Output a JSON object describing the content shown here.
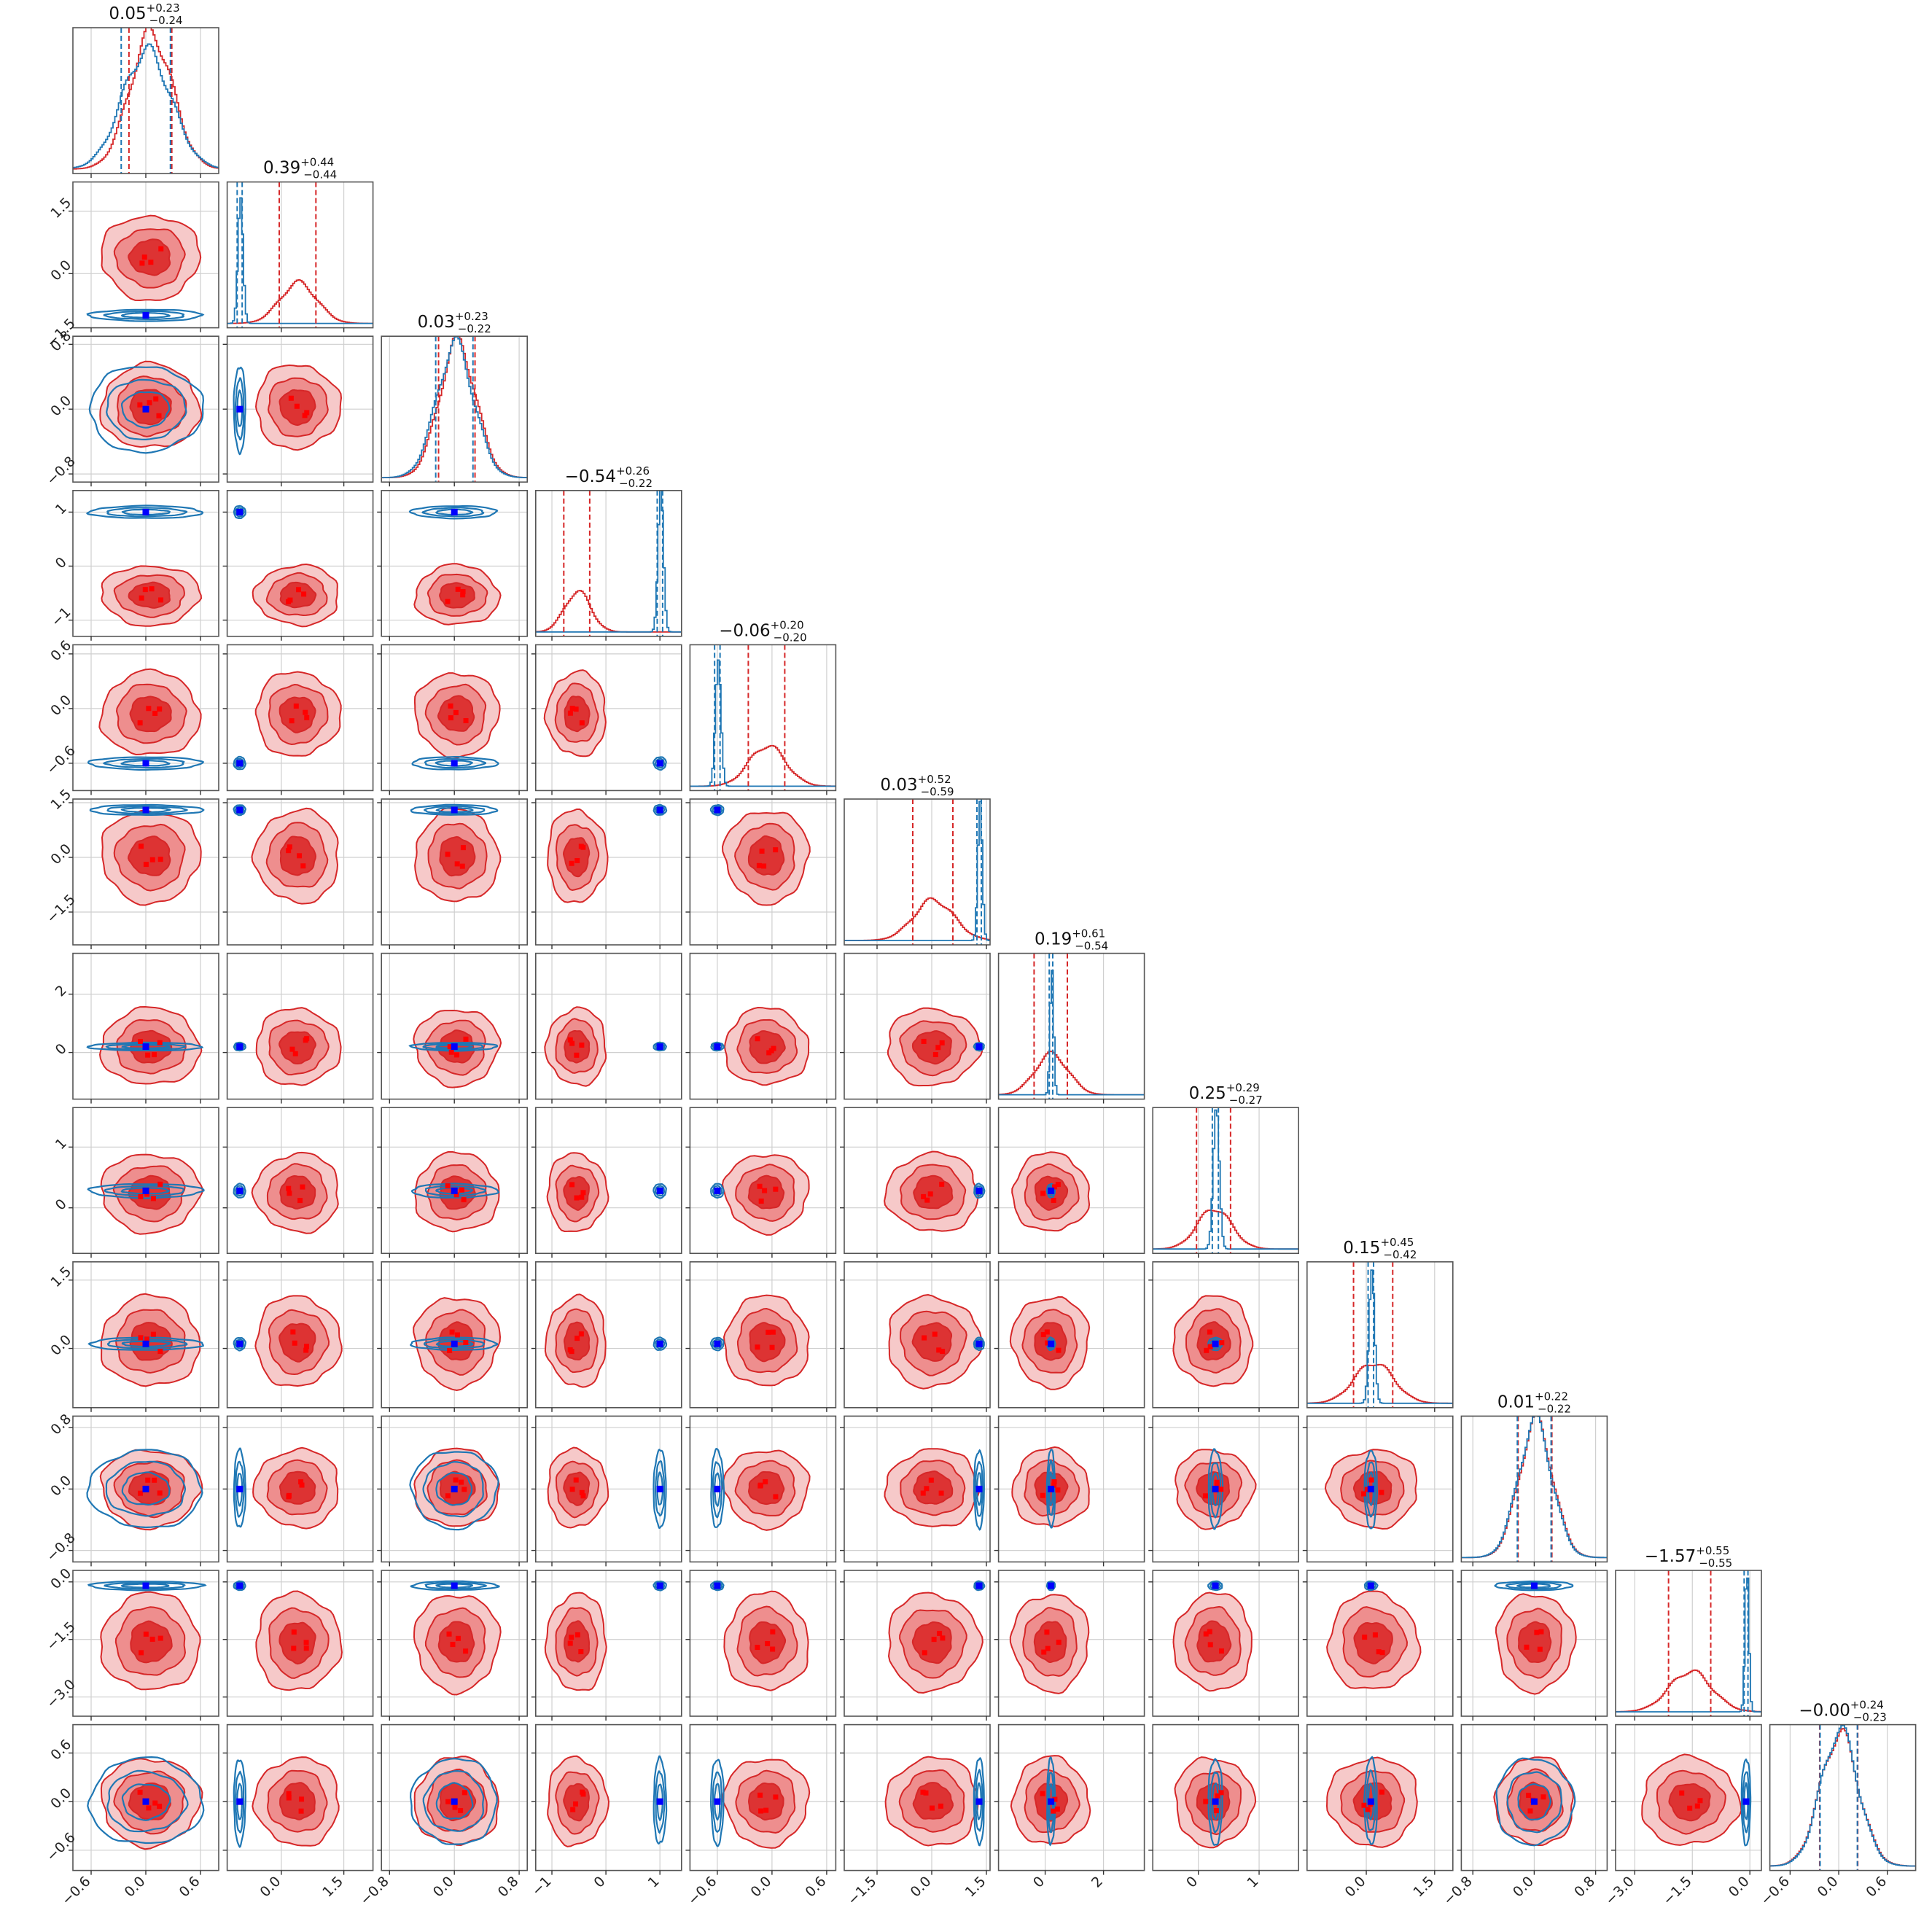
{
  "chart_data": {
    "type": "corner",
    "n_params": 12,
    "series": [
      {
        "name": "",
        "color": "#d62728"
      },
      {
        "name": "",
        "color": "#1f77b4"
      }
    ],
    "marker_colors": {
      "red_markers": "#ff0000",
      "blue_marker": "#0000ff"
    },
    "grid": true,
    "params": [
      {
        "title_value": "0.05",
        "title_plus": "+0.23",
        "title_minus": "−0.24",
        "red": {
          "mean": 0.05,
          "std": 0.235
        },
        "blue": {
          "mean": 0.0,
          "std": 0.27
        },
        "truth": 0.0,
        "range": [
          -0.8,
          0.8
        ],
        "ticks": [
          -0.6,
          0.0,
          0.6
        ],
        "tick_labels": [
          "−0.6",
          "0.0",
          "0.6"
        ],
        "show_y_ticks": false
      },
      {
        "title_value": "0.39",
        "title_plus": "+0.44",
        "title_minus": "−0.44",
        "red": {
          "mean": 0.39,
          "std": 0.44
        },
        "blue": {
          "mean": -1.0,
          "std": 0.06
        },
        "truth": -1.0,
        "range": [
          -1.3,
          2.2
        ],
        "ticks": [
          0.0,
          1.5
        ],
        "tick_labels": [
          "0.0",
          "1.5"
        ],
        "y_ticks": [
          -1.5,
          0.0,
          1.5
        ],
        "y_tick_labels": [
          "−1.5",
          "0.0",
          "1.5"
        ]
      },
      {
        "title_value": "0.03",
        "title_plus": "+0.23",
        "title_minus": "−0.22",
        "red": {
          "mean": 0.03,
          "std": 0.225
        },
        "blue": {
          "mean": 0.0,
          "std": 0.23
        },
        "truth": 0.0,
        "range": [
          -0.9,
          0.9
        ],
        "ticks": [
          -0.8,
          0.0,
          0.8
        ],
        "tick_labels": [
          "−0.8",
          "0.0",
          "0.8"
        ]
      },
      {
        "title_value": "−0.54",
        "title_plus": "+0.26",
        "title_minus": "−0.22",
        "red": {
          "mean": -0.54,
          "std": 0.24
        },
        "blue": {
          "mean": 1.0,
          "std": 0.05
        },
        "truth": 1.0,
        "range": [
          -1.3,
          1.4
        ],
        "ticks": [
          -1,
          0,
          1
        ],
        "tick_labels": [
          "−1",
          "0",
          "1"
        ]
      },
      {
        "title_value": "−0.06",
        "title_plus": "+0.20",
        "title_minus": "−0.20",
        "red": {
          "mean": -0.06,
          "std": 0.2
        },
        "blue": {
          "mean": -0.6,
          "std": 0.03
        },
        "truth": -0.6,
        "range": [
          -0.9,
          0.7
        ],
        "ticks": [
          -0.6,
          0.0,
          0.6
        ],
        "tick_labels": [
          "−0.6",
          "0.0",
          "0.6"
        ]
      },
      {
        "title_value": "0.03",
        "title_plus": "+0.52",
        "title_minus": "−0.59",
        "red": {
          "mean": 0.03,
          "std": 0.55
        },
        "blue": {
          "mean": 1.3,
          "std": 0.06
        },
        "truth": 1.3,
        "range": [
          -2.4,
          1.6
        ],
        "ticks": [
          -1.5,
          0.0,
          1.5
        ],
        "tick_labels": [
          "−1.5",
          "0.0",
          "1.5"
        ]
      },
      {
        "title_value": "0.19",
        "title_plus": "+0.61",
        "title_minus": "−0.54",
        "red": {
          "mean": 0.19,
          "std": 0.57
        },
        "blue": {
          "mean": 0.2,
          "std": 0.06
        },
        "truth": 0.2,
        "range": [
          -1.6,
          3.4
        ],
        "ticks": [
          0,
          2
        ],
        "tick_labels": [
          "0",
          "2"
        ]
      },
      {
        "title_value": "0.25",
        "title_plus": "+0.29",
        "title_minus": "−0.27",
        "red": {
          "mean": 0.25,
          "std": 0.28
        },
        "blue": {
          "mean": 0.28,
          "std": 0.05
        },
        "truth": 0.28,
        "range": [
          -0.75,
          1.65
        ],
        "ticks": [
          0,
          1
        ],
        "tick_labels": [
          "0",
          "1"
        ]
      },
      {
        "title_value": "0.15",
        "title_plus": "+0.45",
        "title_minus": "−0.42",
        "red": {
          "mean": 0.15,
          "std": 0.43
        },
        "blue": {
          "mean": 0.1,
          "std": 0.06
        },
        "truth": 0.1,
        "range": [
          -1.3,
          1.9
        ],
        "ticks": [
          0.0,
          1.5
        ],
        "tick_labels": [
          "0.0",
          "1.5"
        ]
      },
      {
        "title_value": "0.01",
        "title_plus": "+0.22",
        "title_minus": "−0.22",
        "red": {
          "mean": 0.01,
          "std": 0.22
        },
        "blue": {
          "mean": 0.0,
          "std": 0.22
        },
        "truth": 0.0,
        "range": [
          -0.95,
          0.95
        ],
        "ticks": [
          -0.8,
          0.0,
          0.8
        ],
        "tick_labels": [
          "−0.8",
          "0.0",
          "0.8"
        ]
      },
      {
        "title_value": "−1.57",
        "title_plus": "+0.55",
        "title_minus": "−0.55",
        "red": {
          "mean": -1.57,
          "std": 0.55
        },
        "blue": {
          "mean": -0.1,
          "std": 0.05
        },
        "truth": -0.1,
        "range": [
          -3.5,
          0.3
        ],
        "ticks": [
          -3.0,
          -1.5,
          0.0
        ],
        "tick_labels": [
          "−3.0",
          "−1.5",
          "0.0"
        ]
      },
      {
        "title_value": "−0.00",
        "title_plus": "+0.24",
        "title_minus": "−0.23",
        "red": {
          "mean": 0.0,
          "std": 0.235
        },
        "blue": {
          "mean": 0.0,
          "std": 0.23
        },
        "truth": 0.0,
        "range": [
          -0.85,
          0.95
        ],
        "ticks": [
          -0.6,
          0.0,
          0.6
        ],
        "tick_labels": [
          "−0.6",
          "0.0",
          "0.6"
        ]
      }
    ]
  }
}
